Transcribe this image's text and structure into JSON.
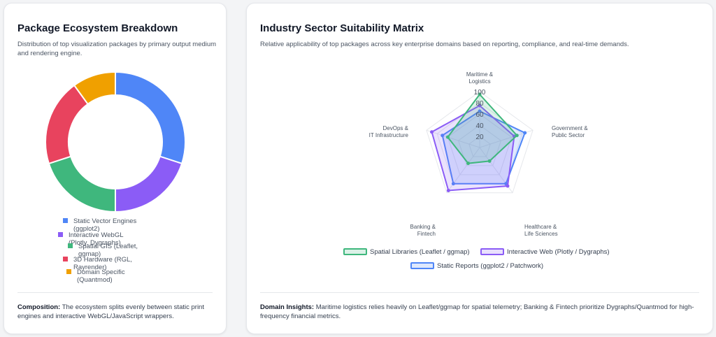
{
  "left_card": {
    "title": "Package Ecosystem Breakdown",
    "subtitle": "Distribution of top visualization packages by primary output medium and rendering engine.",
    "footer_label": "Composition:",
    "footer_text": "The ecosystem splits evenly between static print engines and interactive WebGL/JavaScript wrappers."
  },
  "right_card": {
    "title": "Industry Sector Suitability Matrix",
    "subtitle": "Relative applicability of top packages across key enterprise domains based on reporting, compliance, and real-time demands.",
    "footer_label": "Domain Insights:",
    "footer_text": "Maritime logistics relies heavily on Leaflet/ggmap for spatial telemetry; Banking & Fintech prioritize Dygraphs/Quantmod for high-frequency financial metrics."
  },
  "chart_data": [
    {
      "type": "pie",
      "donut": true,
      "labels": [
        "Static Vector Engines (ggplot2)",
        "Interactive WebGL (Plotly, Dygraphs)",
        "Spatial GIS (Leaflet, ggmap)",
        "3D Hardware (RGL, Rayrender)",
        "Domain Specific (Quantmod)"
      ],
      "values": [
        30,
        20,
        20,
        20,
        10
      ],
      "colors": [
        "#4f86f7",
        "#8b5cf6",
        "#3fb77d",
        "#e8435e",
        "#f0a000"
      ],
      "legend_position": "bottom"
    },
    {
      "type": "radar",
      "axes": [
        "Maritime & Logistics",
        "Government & Public Sector",
        "Healthcare & Life Sciences",
        "Banking & Fintech",
        "DevOps & IT Infrastructure"
      ],
      "ticks": [
        "20",
        "40",
        "60",
        "80",
        "100"
      ],
      "rmax": 100,
      "series": [
        {
          "name": "Spatial Libraries (Leaflet / ggmap)",
          "values": [
            95,
            70,
            30,
            35,
            60
          ],
          "color": "#3fb77d"
        },
        {
          "name": "Interactive Web (Plotly / Dygraphs)",
          "values": [
            75,
            65,
            85,
            95,
            90
          ],
          "color": "#8b5cf6"
        },
        {
          "name": "Static Reports (ggplot2 / Patchwork)",
          "values": [
            65,
            85,
            80,
            80,
            70
          ],
          "color": "#4f86f7"
        }
      ],
      "legend_position": "bottom"
    }
  ]
}
